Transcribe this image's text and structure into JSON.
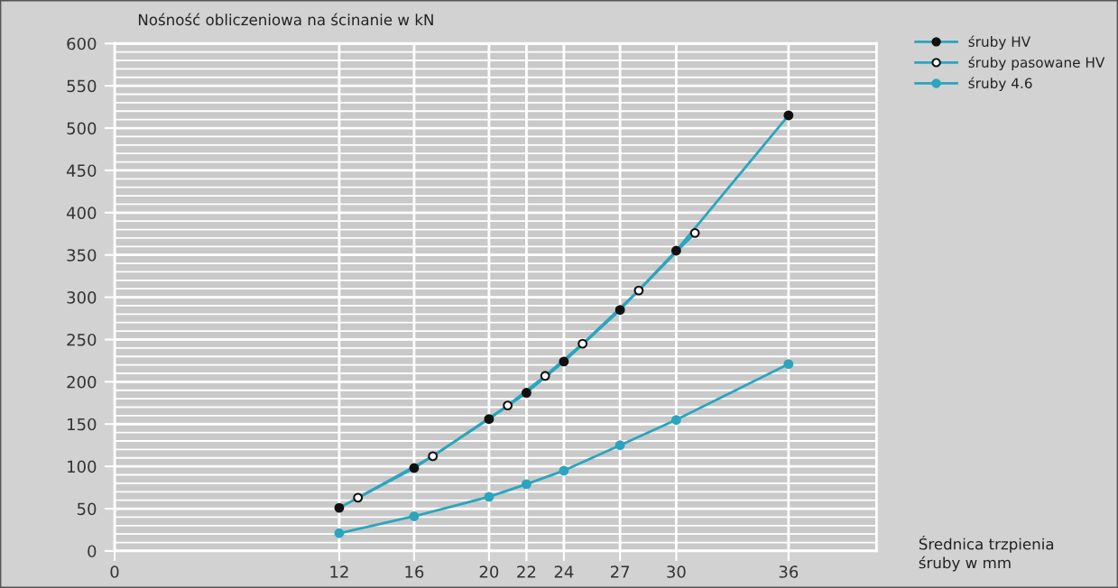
{
  "chart_data": {
    "type": "line",
    "ylabel": "Nośność obliczeniowa na ścinanie w kN",
    "xlabel": "Średnica trzpienia\nśruby w mm",
    "xlim": [
      0,
      40.7
    ],
    "xticks": [
      0,
      12,
      16,
      20,
      22,
      24,
      27,
      30,
      36
    ],
    "ylim": [
      0,
      600
    ],
    "yticks": [
      0,
      50,
      100,
      150,
      200,
      250,
      300,
      350,
      400,
      450,
      500,
      550,
      600
    ],
    "grid": true,
    "legend": "top right",
    "marker": "circle",
    "series": [
      {
        "name": "śruby HV",
        "color": "#2aa5bf",
        "colors": [
          "#111111",
          "#111111",
          "#111111",
          "#111111",
          "#111111",
          "#111111",
          "#111111",
          "#111111"
        ],
        "x": [
          12,
          16,
          20,
          22,
          24,
          27,
          30,
          36
        ],
        "values": [
          51,
          98,
          156,
          187,
          224,
          285,
          355,
          515
        ]
      },
      {
        "name": "śruby pasowane HV",
        "color": "#2aa5bf",
        "colors": [
          "#ffffff",
          "#ffffff",
          "#ffffff",
          "#ffffff",
          "#ffffff",
          "#ffffff",
          "#ffffff"
        ],
        "x": [
          13,
          17,
          21,
          23,
          25,
          28,
          31
        ],
        "values": [
          63,
          112,
          172,
          207,
          245,
          308,
          376
        ]
      },
      {
        "name": "śruby 4.6",
        "color": "#2aa5bf",
        "colors": [
          "#2aa5bf",
          "#2aa5bf",
          "#2aa5bf",
          "#2aa5bf",
          "#2aa5bf",
          "#2aa5bf",
          "#2aa5bf",
          "#2aa5bf"
        ],
        "x": [
          12,
          16,
          20,
          22,
          24,
          27,
          30,
          36
        ],
        "values": [
          21,
          41,
          64,
          79,
          95,
          125,
          155,
          221
        ]
      }
    ]
  }
}
